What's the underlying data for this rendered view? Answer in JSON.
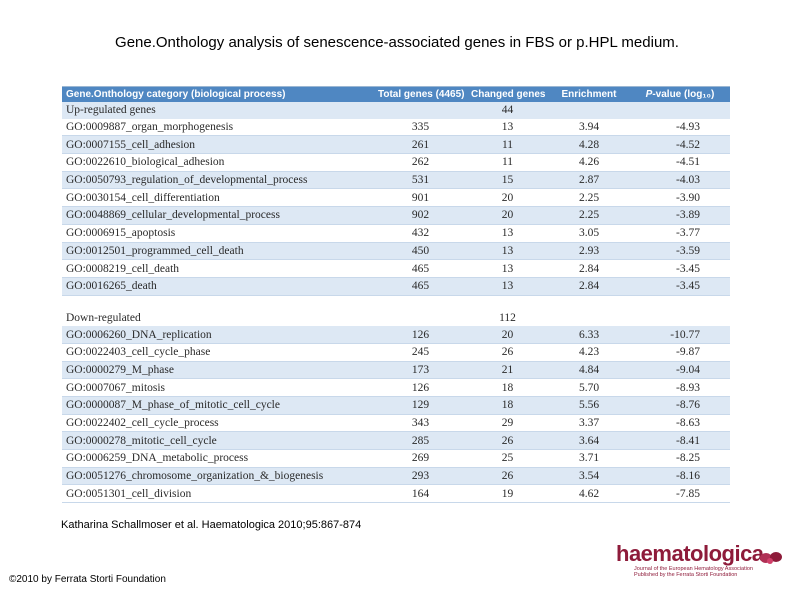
{
  "title": "Gene.Onthology analysis of senescence-associated genes in FBS or p.HPL medium.",
  "table": {
    "headers": {
      "category": "Gene.Onthology category (biological process)",
      "total": "Total genes (4465)",
      "changed": "Changed genes",
      "enrichment": "Enrichment",
      "pvalue_italic": "P",
      "pvalue_rest": "-value (log₁₀)"
    },
    "up": {
      "label": "Up-regulated genes",
      "changed": "44",
      "rows": [
        {
          "category": "GO:0009887_organ_morphogenesis",
          "total": "335",
          "changed": "13",
          "enrichment": "3.94",
          "pvalue": "-4.93"
        },
        {
          "category": "GO:0007155_cell_adhesion",
          "total": "261",
          "changed": "11",
          "enrichment": "4.28",
          "pvalue": "-4.52"
        },
        {
          "category": "GO:0022610_biological_adhesion",
          "total": "262",
          "changed": "11",
          "enrichment": "4.26",
          "pvalue": "-4.51"
        },
        {
          "category": "GO:0050793_regulation_of_developmental_process",
          "total": "531",
          "changed": "15",
          "enrichment": "2.87",
          "pvalue": "-4.03"
        },
        {
          "category": "GO:0030154_cell_differentiation",
          "total": "901",
          "changed": "20",
          "enrichment": "2.25",
          "pvalue": "-3.90"
        },
        {
          "category": "GO:0048869_cellular_developmental_process",
          "total": "902",
          "changed": "20",
          "enrichment": "2.25",
          "pvalue": "-3.89"
        },
        {
          "category": "GO:0006915_apoptosis",
          "total": "432",
          "changed": "13",
          "enrichment": "3.05",
          "pvalue": "-3.77"
        },
        {
          "category": "GO:0012501_programmed_cell_death",
          "total": "450",
          "changed": "13",
          "enrichment": "2.93",
          "pvalue": "-3.59"
        },
        {
          "category": "GO:0008219_cell_death",
          "total": "465",
          "changed": "13",
          "enrichment": "2.84",
          "pvalue": "-3.45"
        },
        {
          "category": "GO:0016265_death",
          "total": "465",
          "changed": "13",
          "enrichment": "2.84",
          "pvalue": "-3.45"
        }
      ]
    },
    "down": {
      "label": "Down-regulated",
      "changed": "112",
      "rows": [
        {
          "category": "GO:0006260_DNA_replication",
          "total": "126",
          "changed": "20",
          "enrichment": "6.33",
          "pvalue": "-10.77"
        },
        {
          "category": "GO:0022403_cell_cycle_phase",
          "total": "245",
          "changed": "26",
          "enrichment": "4.23",
          "pvalue": "-9.87"
        },
        {
          "category": "GO:0000279_M_phase",
          "total": "173",
          "changed": "21",
          "enrichment": "4.84",
          "pvalue": "-9.04"
        },
        {
          "category": "GO:0007067_mitosis",
          "total": "126",
          "changed": "18",
          "enrichment": "5.70",
          "pvalue": "-8.93"
        },
        {
          "category": "GO:0000087_M_phase_of_mitotic_cell_cycle",
          "total": "129",
          "changed": "18",
          "enrichment": "5.56",
          "pvalue": "-8.76"
        },
        {
          "category": "GO:0022402_cell_cycle_process",
          "total": "343",
          "changed": "29",
          "enrichment": "3.37",
          "pvalue": "-8.63"
        },
        {
          "category": "GO:0000278_mitotic_cell_cycle",
          "total": "285",
          "changed": "26",
          "enrichment": "3.64",
          "pvalue": "-8.41"
        },
        {
          "category": "GO:0006259_DNA_metabolic_process",
          "total": "269",
          "changed": "25",
          "enrichment": "3.71",
          "pvalue": "-8.25"
        },
        {
          "category": "GO:0051276_chromosome_organization_&_biogenesis",
          "total": "293",
          "changed": "26",
          "enrichment": "3.54",
          "pvalue": "-8.16"
        },
        {
          "category": "GO:0051301_cell_division",
          "total": "164",
          "changed": "19",
          "enrichment": "4.62",
          "pvalue": "-7.85"
        }
      ]
    }
  },
  "citation": "Katharina Schallmoser et al. Haematologica 2010;95:867-874",
  "copyright": "©2010 by Ferrata Storti Foundation",
  "logo": {
    "name": "haematologica",
    "subtitle_line1": "Journal of the European Hematology Association",
    "subtitle_line2": "Published by the Ferrata Storti Foundation"
  },
  "colors": {
    "header": "#4f87c2",
    "stripe": "#dde8f4",
    "brand": "#8e1b3a"
  }
}
